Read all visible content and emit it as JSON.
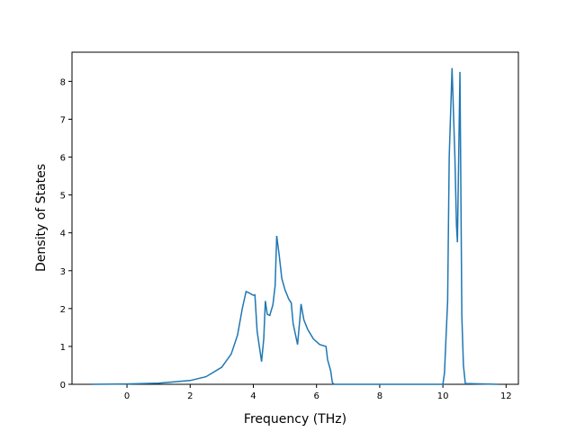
{
  "chart_data": {
    "type": "line",
    "xlabel": "Frequency (THz)",
    "ylabel": "Density of States",
    "x": [
      -1.1,
      0,
      1,
      2,
      2.5,
      3,
      3.3,
      3.5,
      3.65,
      3.77,
      3.85,
      4.0,
      4.05,
      4.12,
      4.26,
      4.33,
      4.38,
      4.44,
      4.52,
      4.62,
      4.69,
      4.74,
      4.82,
      4.9,
      5.0,
      5.12,
      5.2,
      5.26,
      5.4,
      5.47,
      5.51,
      5.6,
      5.72,
      5.9,
      6.1,
      6.3,
      6.35,
      6.45,
      6.5,
      6.55,
      7,
      10.0,
      10.05,
      10.15,
      10.2,
      10.29,
      10.38,
      10.43,
      10.46,
      10.54,
      10.6,
      10.65,
      10.71,
      11.75
    ],
    "series": [
      {
        "color": "#1f77b4",
        "values": [
          0,
          0.01,
          0.03,
          0.1,
          0.2,
          0.45,
          0.8,
          1.3,
          2.0,
          2.45,
          2.42,
          2.35,
          2.36,
          1.4,
          0.6,
          1.2,
          2.2,
          1.85,
          1.82,
          2.1,
          2.6,
          3.92,
          3.4,
          2.8,
          2.5,
          2.25,
          2.15,
          1.6,
          1.05,
          1.7,
          2.12,
          1.7,
          1.45,
          1.2,
          1.05,
          1.0,
          0.65,
          0.35,
          0.05,
          0,
          0,
          0,
          0.3,
          2.2,
          6,
          8.35,
          6,
          4.2,
          3.75,
          8.25,
          1.8,
          0.5,
          0.02,
          0
        ]
      }
    ],
    "xlim": [
      -1.74,
      12.39
    ],
    "ylim": [
      0,
      8.77
    ],
    "xticks": [
      0,
      2,
      4,
      6,
      8,
      10,
      12
    ],
    "yticks": [
      0,
      1,
      2,
      3,
      4,
      5,
      6,
      7,
      8
    ]
  }
}
